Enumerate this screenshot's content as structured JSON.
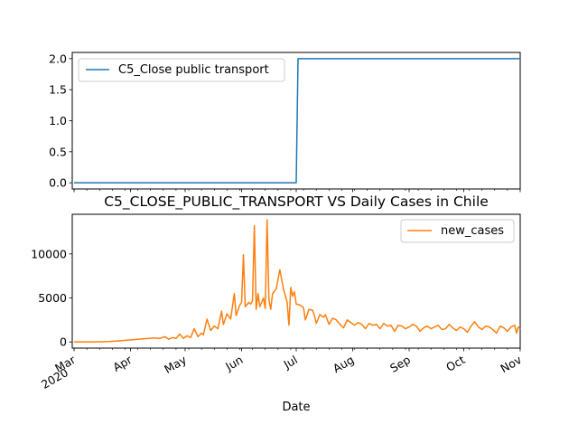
{
  "chart_data": [
    {
      "type": "line",
      "title": "",
      "xlabel": "",
      "ylabel": "",
      "xlim": [
        "2020-02-29",
        "2020-11-01"
      ],
      "ylim": [
        -0.1,
        2.1
      ],
      "yticks": [
        0.0,
        0.5,
        1.0,
        1.5,
        2.0
      ],
      "ytick_labels": [
        "0.0",
        "0.5",
        "1.0",
        "1.5",
        "2.0"
      ],
      "grid": false,
      "legend_position": "top-left",
      "series": [
        {
          "name": "C5_Close public transport",
          "color": "#1f77b4",
          "points": [
            [
              "2020-03-01",
              0
            ],
            [
              "2020-07-01",
              0
            ],
            [
              "2020-07-02",
              2
            ],
            [
              "2020-11-01",
              2
            ]
          ]
        }
      ]
    },
    {
      "type": "line",
      "title": "C5_CLOSE_PUBLIC_TRANSPORT VS Daily Cases in Chile",
      "xlabel": "Date",
      "ylabel": "",
      "xlim": [
        "2020-02-29",
        "2020-11-01"
      ],
      "ylim": [
        -700,
        14500
      ],
      "yticks": [
        0,
        5000,
        10000
      ],
      "ytick_labels": [
        "0",
        "5000",
        "10000"
      ],
      "xticks": [
        {
          "date": "2020-03-01",
          "label": "Mar",
          "sublabel": "2020"
        },
        {
          "date": "2020-04-01",
          "label": "Apr",
          "sublabel": ""
        },
        {
          "date": "2020-05-01",
          "label": "May",
          "sublabel": ""
        },
        {
          "date": "2020-06-01",
          "label": "Jun",
          "sublabel": ""
        },
        {
          "date": "2020-07-01",
          "label": "Jul",
          "sublabel": ""
        },
        {
          "date": "2020-08-01",
          "label": "Aug",
          "sublabel": ""
        },
        {
          "date": "2020-09-01",
          "label": "Sep",
          "sublabel": ""
        },
        {
          "date": "2020-10-01",
          "label": "Oct",
          "sublabel": ""
        },
        {
          "date": "2020-11-01",
          "label": "Nov",
          "sublabel": ""
        }
      ],
      "grid": false,
      "legend_position": "top-right",
      "series": [
        {
          "name": "new_cases",
          "color": "#ff7f0e",
          "points": [
            [
              "2020-03-01",
              0
            ],
            [
              "2020-03-05",
              0
            ],
            [
              "2020-03-10",
              5
            ],
            [
              "2020-03-15",
              20
            ],
            [
              "2020-03-20",
              50
            ],
            [
              "2020-03-24",
              100
            ],
            [
              "2020-03-27",
              150
            ],
            [
              "2020-03-30",
              200
            ],
            [
              "2020-04-02",
              250
            ],
            [
              "2020-04-05",
              300
            ],
            [
              "2020-04-08",
              350
            ],
            [
              "2020-04-11",
              400
            ],
            [
              "2020-04-14",
              450
            ],
            [
              "2020-04-17",
              400
            ],
            [
              "2020-04-20",
              600
            ],
            [
              "2020-04-22",
              300
            ],
            [
              "2020-04-24",
              500
            ],
            [
              "2020-04-26",
              400
            ],
            [
              "2020-04-28",
              900
            ],
            [
              "2020-04-30",
              400
            ],
            [
              "2020-05-02",
              700
            ],
            [
              "2020-05-04",
              500
            ],
            [
              "2020-05-06",
              1500
            ],
            [
              "2020-05-08",
              600
            ],
            [
              "2020-05-10",
              1000
            ],
            [
              "2020-05-11",
              800
            ],
            [
              "2020-05-13",
              2600
            ],
            [
              "2020-05-15",
              1300
            ],
            [
              "2020-05-17",
              1800
            ],
            [
              "2020-05-19",
              1500
            ],
            [
              "2020-05-21",
              3500
            ],
            [
              "2020-05-22",
              2000
            ],
            [
              "2020-05-24",
              3200
            ],
            [
              "2020-05-26",
              2600
            ],
            [
              "2020-05-28",
              5500
            ],
            [
              "2020-05-29",
              3000
            ],
            [
              "2020-05-31",
              4200
            ],
            [
              "2020-06-01",
              4500
            ],
            [
              "2020-06-02",
              9900
            ],
            [
              "2020-06-03",
              4000
            ],
            [
              "2020-06-05",
              4500
            ],
            [
              "2020-06-06",
              4300
            ],
            [
              "2020-06-07",
              4700
            ],
            [
              "2020-06-08",
              13200
            ],
            [
              "2020-06-09",
              3700
            ],
            [
              "2020-06-10",
              5500
            ],
            [
              "2020-06-11",
              4000
            ],
            [
              "2020-06-13",
              5000
            ],
            [
              "2020-06-14",
              3800
            ],
            [
              "2020-06-15",
              13900
            ],
            [
              "2020-06-16",
              4800
            ],
            [
              "2020-06-17",
              3700
            ],
            [
              "2020-06-18",
              5500
            ],
            [
              "2020-06-20",
              6000
            ],
            [
              "2020-06-22",
              8200
            ],
            [
              "2020-06-24",
              6000
            ],
            [
              "2020-06-26",
              4500
            ],
            [
              "2020-06-27",
              1900
            ],
            [
              "2020-06-28",
              6200
            ],
            [
              "2020-06-29",
              5200
            ],
            [
              "2020-06-30",
              5700
            ],
            [
              "2020-07-01",
              4300
            ],
            [
              "2020-07-03",
              4200
            ],
            [
              "2020-07-05",
              3900
            ],
            [
              "2020-07-06",
              2500
            ],
            [
              "2020-07-08",
              3700
            ],
            [
              "2020-07-10",
              3600
            ],
            [
              "2020-07-11",
              3000
            ],
            [
              "2020-07-12",
              2100
            ],
            [
              "2020-07-14",
              3100
            ],
            [
              "2020-07-16",
              2800
            ],
            [
              "2020-07-17",
              3100
            ],
            [
              "2020-07-19",
              2000
            ],
            [
              "2020-07-21",
              2700
            ],
            [
              "2020-07-23",
              2500
            ],
            [
              "2020-07-25",
              2000
            ],
            [
              "2020-07-27",
              1600
            ],
            [
              "2020-07-29",
              2500
            ],
            [
              "2020-07-31",
              2200
            ],
            [
              "2020-08-02",
              1900
            ],
            [
              "2020-08-04",
              2200
            ],
            [
              "2020-08-06",
              2000
            ],
            [
              "2020-08-08",
              1500
            ],
            [
              "2020-08-10",
              2100
            ],
            [
              "2020-08-12",
              1900
            ],
            [
              "2020-08-14",
              2000
            ],
            [
              "2020-08-16",
              1500
            ],
            [
              "2020-08-18",
              2100
            ],
            [
              "2020-08-20",
              1800
            ],
            [
              "2020-08-22",
              1900
            ],
            [
              "2020-08-24",
              1200
            ],
            [
              "2020-08-26",
              1900
            ],
            [
              "2020-08-28",
              1800
            ],
            [
              "2020-08-30",
              1500
            ],
            [
              "2020-09-01",
              1700
            ],
            [
              "2020-09-03",
              2000
            ],
            [
              "2020-09-05",
              1800
            ],
            [
              "2020-09-07",
              1200
            ],
            [
              "2020-09-09",
              1600
            ],
            [
              "2020-09-11",
              1800
            ],
            [
              "2020-09-13",
              1500
            ],
            [
              "2020-09-15",
              1700
            ],
            [
              "2020-09-17",
              1900
            ],
            [
              "2020-09-19",
              1400
            ],
            [
              "2020-09-21",
              1500
            ],
            [
              "2020-09-23",
              2000
            ],
            [
              "2020-09-25",
              1600
            ],
            [
              "2020-09-27",
              1300
            ],
            [
              "2020-09-29",
              1700
            ],
            [
              "2020-10-01",
              1500
            ],
            [
              "2020-10-03",
              1100
            ],
            [
              "2020-10-05",
              1800
            ],
            [
              "2020-10-07",
              2300
            ],
            [
              "2020-10-09",
              1700
            ],
            [
              "2020-10-11",
              1400
            ],
            [
              "2020-10-13",
              1800
            ],
            [
              "2020-10-15",
              1700
            ],
            [
              "2020-10-17",
              1400
            ],
            [
              "2020-10-19",
              1000
            ],
            [
              "2020-10-21",
              1800
            ],
            [
              "2020-10-23",
              1600
            ],
            [
              "2020-10-25",
              1200
            ],
            [
              "2020-10-27",
              1700
            ],
            [
              "2020-10-29",
              1900
            ],
            [
              "2020-10-30",
              1000
            ],
            [
              "2020-10-31",
              1700
            ],
            [
              "2020-11-01",
              1500
            ]
          ]
        }
      ]
    }
  ]
}
